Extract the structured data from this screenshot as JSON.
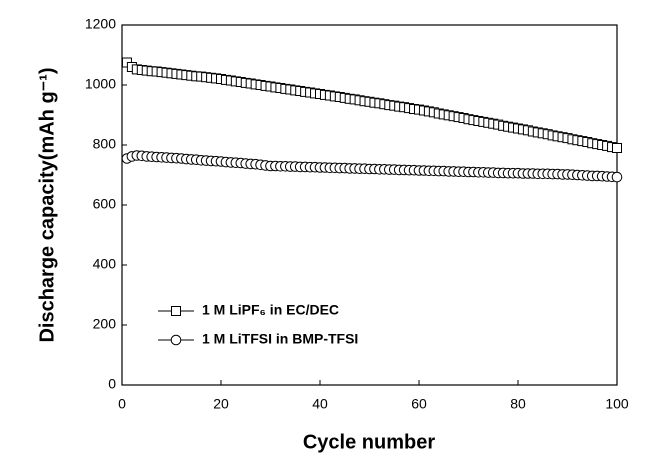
{
  "chart_data": {
    "type": "line",
    "x_label": "Cycle number",
    "y_label": "Discharge capacity(mAh g⁻¹)",
    "xlim": [
      0,
      100
    ],
    "xticks": [
      0,
      20,
      40,
      60,
      80,
      100
    ],
    "ylim": [
      0,
      1200
    ],
    "yticks": [
      0,
      200,
      400,
      600,
      800,
      1000,
      1200
    ],
    "legend": "lower left",
    "x": [
      1,
      2,
      3,
      4,
      5,
      6,
      7,
      8,
      9,
      10,
      11,
      12,
      13,
      14,
      15,
      16,
      17,
      18,
      19,
      20,
      21,
      22,
      23,
      24,
      25,
      26,
      27,
      28,
      29,
      30,
      31,
      32,
      33,
      34,
      35,
      36,
      37,
      38,
      39,
      40,
      41,
      42,
      43,
      44,
      45,
      46,
      47,
      48,
      49,
      50,
      51,
      52,
      53,
      54,
      55,
      56,
      57,
      58,
      59,
      60,
      61,
      62,
      63,
      64,
      65,
      66,
      67,
      68,
      69,
      70,
      71,
      72,
      73,
      74,
      75,
      76,
      77,
      78,
      79,
      80,
      81,
      82,
      83,
      84,
      85,
      86,
      87,
      88,
      89,
      90,
      91,
      92,
      93,
      94,
      95,
      96,
      97,
      98,
      99,
      100
    ],
    "series": [
      {
        "name": "1 M LiPF₆ in EC/DEC",
        "color": "#000000",
        "marker": "square",
        "values": [
          1075,
          1060,
          1052,
          1050,
          1048,
          1046,
          1045,
          1043,
          1041,
          1039,
          1037,
          1035,
          1033,
          1031,
          1029,
          1028,
          1026,
          1024,
          1022,
          1020,
          1017,
          1015,
          1012,
          1010,
          1007,
          1005,
          1002,
          1000,
          997,
          995,
          992,
          990,
          987,
          985,
          982,
          980,
          977,
          975,
          972,
          970,
          967,
          965,
          962,
          960,
          957,
          954,
          952,
          949,
          946,
          944,
          941,
          939,
          936,
          933,
          931,
          928,
          926,
          923,
          920,
          918,
          915,
          912,
          909,
          905,
          902,
          899,
          896,
          893,
          890,
          886,
          883,
          880,
          877,
          874,
          871,
          868,
          864,
          861,
          858,
          855,
          852,
          849,
          845,
          842,
          839,
          836,
          832,
          829,
          826,
          823,
          819,
          816,
          813,
          810,
          806,
          803,
          800,
          797,
          793,
          790
        ]
      },
      {
        "name": "1 M LiTFSI in BMP-TFSI",
        "color": "#000000",
        "marker": "circle",
        "values": [
          755,
          762,
          765,
          764,
          762,
          761,
          760,
          759,
          758,
          757,
          756,
          755,
          753,
          752,
          751,
          749,
          748,
          747,
          746,
          745,
          743,
          742,
          741,
          740,
          738,
          737,
          736,
          734,
          732,
          730,
          730,
          729,
          729,
          728,
          728,
          727,
          727,
          726,
          726,
          725,
          725,
          724,
          724,
          723,
          723,
          722,
          722,
          721,
          721,
          720,
          720,
          719,
          719,
          718,
          718,
          717,
          717,
          716,
          716,
          715,
          715,
          714,
          714,
          713,
          713,
          712,
          712,
          711,
          711,
          710,
          710,
          709,
          709,
          708,
          708,
          707,
          707,
          706,
          706,
          706,
          705,
          705,
          705,
          704,
          704,
          704,
          703,
          703,
          702,
          702,
          701,
          700,
          699,
          698,
          697,
          697,
          696,
          695,
          694,
          693
        ]
      }
    ]
  }
}
